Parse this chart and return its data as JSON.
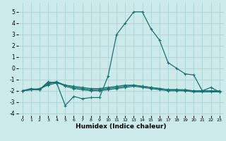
{
  "xlabel": "Humidex (Indice chaleur)",
  "xlim": [
    -0.5,
    23.5
  ],
  "ylim": [
    -4.2,
    5.8
  ],
  "xticks": [
    0,
    1,
    2,
    3,
    4,
    5,
    6,
    7,
    8,
    9,
    10,
    11,
    12,
    13,
    14,
    15,
    16,
    17,
    18,
    19,
    20,
    21,
    22,
    23
  ],
  "yticks": [
    -4,
    -3,
    -2,
    -1,
    0,
    1,
    2,
    3,
    4,
    5
  ],
  "bg_color": "#cceaea",
  "grid_color": "#aad4d4",
  "line_color": "#1a7070",
  "line_width": 0.9,
  "marker": "+",
  "marker_size": 3.5,
  "marker_lw": 0.8,
  "lines": [
    {
      "x": [
        0,
        1,
        2,
        3,
        4,
        5,
        6,
        7,
        8,
        9,
        10,
        11,
        12,
        13,
        14,
        15,
        16,
        17,
        18,
        19,
        20,
        21,
        22,
        23
      ],
      "y": [
        -2.0,
        -1.8,
        -1.9,
        -1.2,
        -1.3,
        -3.3,
        -2.5,
        -2.7,
        -2.6,
        -2.6,
        -0.7,
        3.0,
        4.0,
        5.0,
        5.0,
        3.5,
        2.5,
        0.5,
        0.0,
        -0.5,
        -0.6,
        -2.0,
        -1.7,
        -2.1
      ]
    },
    {
      "x": [
        0,
        1,
        2,
        3,
        4,
        5,
        6,
        7,
        8,
        9,
        10,
        11,
        12,
        13,
        14,
        15,
        16,
        17,
        18,
        19,
        20,
        21,
        22,
        23
      ],
      "y": [
        -2.0,
        -1.9,
        -1.9,
        -1.3,
        -1.2,
        -1.5,
        -1.7,
        -1.8,
        -1.9,
        -1.9,
        -1.8,
        -1.7,
        -1.6,
        -1.5,
        -1.6,
        -1.7,
        -1.8,
        -1.9,
        -1.9,
        -2.0,
        -2.0,
        -2.0,
        -2.0,
        -2.1
      ]
    },
    {
      "x": [
        0,
        1,
        2,
        3,
        4,
        5,
        6,
        7,
        8,
        9,
        10,
        11,
        12,
        13,
        14,
        15,
        16,
        17,
        18,
        19,
        20,
        21,
        22,
        23
      ],
      "y": [
        -2.0,
        -1.9,
        -1.9,
        -1.4,
        -1.2,
        -1.6,
        -1.8,
        -1.9,
        -2.0,
        -2.0,
        -1.9,
        -1.8,
        -1.7,
        -1.6,
        -1.7,
        -1.8,
        -1.9,
        -2.0,
        -2.0,
        -2.0,
        -2.1,
        -2.1,
        -2.1,
        -2.1
      ]
    },
    {
      "x": [
        0,
        1,
        2,
        3,
        4,
        5,
        6,
        7,
        8,
        9,
        10,
        11,
        12,
        13,
        14,
        15,
        16,
        17,
        18,
        19,
        20,
        21,
        22,
        23
      ],
      "y": [
        -2.0,
        -1.9,
        -1.8,
        -1.5,
        -1.3,
        -1.5,
        -1.6,
        -1.7,
        -1.8,
        -1.8,
        -1.7,
        -1.6,
        -1.5,
        -1.5,
        -1.6,
        -1.7,
        -1.8,
        -1.9,
        -1.9,
        -1.9,
        -2.0,
        -2.0,
        -2.0,
        -2.0
      ]
    }
  ],
  "xlabel_fontsize": 6.5,
  "xlabel_fontweight": "bold",
  "tick_fontsize_x": 4.5,
  "tick_fontsize_y": 5.5
}
